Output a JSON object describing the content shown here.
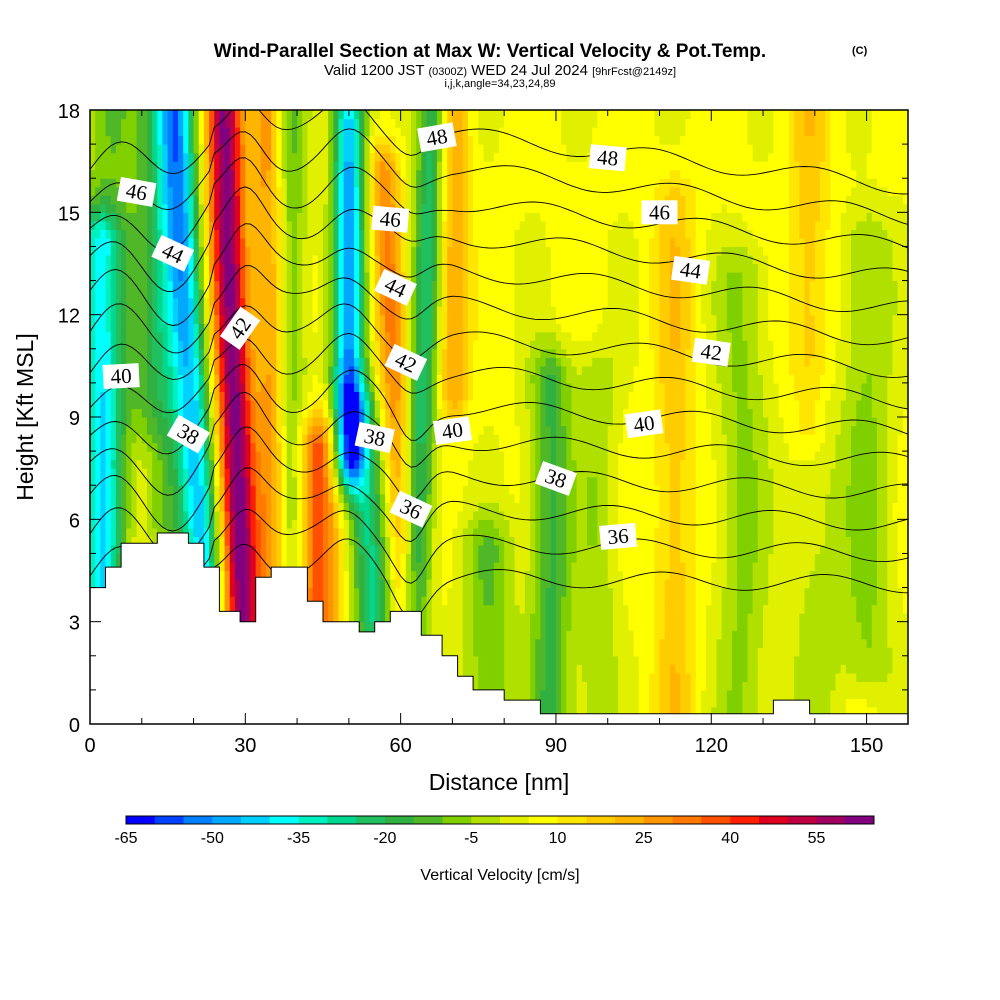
{
  "title": {
    "main": "Wind-Parallel Section at Max W: Vertical Velocity & Pot.Temp.",
    "copyright": "(C)",
    "valid_a": "Valid 1200 JST ",
    "valid_b": "(0300Z)",
    "valid_c": " WED 24 Jul 2024 ",
    "valid_d": "[9hrFcst@2149z]",
    "indices": "i,j,k,angle=34,23,24,89"
  },
  "chart_data": {
    "type": "heatmap",
    "xlabel": "Distance [nm]",
    "ylabel": "Height [Kft MSL]",
    "xlim": [
      0,
      158
    ],
    "ylim": [
      0,
      18
    ],
    "x_ticks": [
      "0",
      "30",
      "60",
      "90",
      "120",
      "150"
    ],
    "x_tick_values": [
      0,
      30,
      60,
      90,
      120,
      150
    ],
    "y_ticks": [
      "0",
      "3",
      "6",
      "9",
      "12",
      "15",
      "18"
    ],
    "y_tick_values": [
      0,
      3,
      6,
      9,
      12,
      15,
      18
    ],
    "grid": false,
    "terrain": [
      [
        0,
        4
      ],
      [
        3,
        4
      ],
      [
        3,
        4.6
      ],
      [
        6,
        4.6
      ],
      [
        6,
        5.3
      ],
      [
        13,
        5.3
      ],
      [
        13,
        5.6
      ],
      [
        19,
        5.6
      ],
      [
        19,
        5.3
      ],
      [
        22,
        5.3
      ],
      [
        22,
        4.6
      ],
      [
        25,
        4.6
      ],
      [
        25,
        3.3
      ],
      [
        29,
        3.3
      ],
      [
        29,
        3.0
      ],
      [
        32,
        3.0
      ],
      [
        32,
        4.3
      ],
      [
        35,
        4.3
      ],
      [
        35,
        4.6
      ],
      [
        42,
        4.6
      ],
      [
        42,
        3.6
      ],
      [
        45,
        3.6
      ],
      [
        45,
        3.0
      ],
      [
        52,
        3.0
      ],
      [
        52,
        2.7
      ],
      [
        55,
        2.7
      ],
      [
        55,
        3.0
      ],
      [
        58,
        3.0
      ],
      [
        58,
        3.3
      ],
      [
        64,
        3.3
      ],
      [
        64,
        2.6
      ],
      [
        68,
        2.6
      ],
      [
        68,
        2.0
      ],
      [
        71,
        2.0
      ],
      [
        71,
        1.4
      ],
      [
        74,
        1.4
      ],
      [
        74,
        1.0
      ],
      [
        80,
        1.0
      ],
      [
        80,
        0.7
      ],
      [
        87,
        0.7
      ],
      [
        87,
        0.3
      ],
      [
        132,
        0.3
      ],
      [
        132,
        0.7
      ],
      [
        139,
        0.7
      ],
      [
        139,
        0.3
      ],
      [
        158,
        0.3
      ]
    ],
    "vertical_velocity": {
      "background": 6,
      "features": [
        {
          "x": 2,
          "w": 4,
          "zlo": 3,
          "zhi": 14,
          "v": -32
        },
        {
          "x": 4,
          "w": 6,
          "zlo": 0,
          "zhi": 18,
          "v": -12
        },
        {
          "x": 14,
          "w": 5,
          "zlo": 6,
          "zhi": 18,
          "v": -22
        },
        {
          "x": 10,
          "w": 5,
          "zlo": 4,
          "zhi": 7.5,
          "v": 14
        },
        {
          "x": 20,
          "w": 3.5,
          "zlo": 4,
          "zhi": 18,
          "v": -42,
          "tilt": -0.4
        },
        {
          "x": 28,
          "w": 3.5,
          "zlo": 3,
          "zhi": 18,
          "v": 58,
          "tilt": -0.25
        },
        {
          "x": 35,
          "w": 3,
          "zlo": 3,
          "zhi": 18,
          "v": 22,
          "tilt": -0.1
        },
        {
          "x": 39,
          "w": 3,
          "zlo": 4,
          "zhi": 18,
          "v": -14
        },
        {
          "x": 44,
          "w": 4,
          "zlo": 3,
          "zhi": 8,
          "v": 35
        },
        {
          "x": 50,
          "w": 3,
          "zlo": 8,
          "zhi": 17.5,
          "v": -52
        },
        {
          "x": 52,
          "w": 4,
          "zlo": 3,
          "zhi": 9,
          "v": -30,
          "tilt": -0.5
        },
        {
          "x": 59,
          "w": 3,
          "zlo": 3,
          "zhi": 16,
          "v": 25,
          "tilt": -0.3
        },
        {
          "x": 64,
          "w": 3,
          "zlo": 3,
          "zhi": 18,
          "v": -28,
          "tilt": 0.25
        },
        {
          "x": 70,
          "w": 3,
          "zlo": 10,
          "zhi": 18,
          "v": 22
        },
        {
          "x": 77,
          "w": 5,
          "zlo": 0,
          "zhi": 5,
          "v": -14
        },
        {
          "x": 89,
          "w": 4,
          "zlo": 0,
          "zhi": 10,
          "v": -20
        },
        {
          "x": 98,
          "w": 4,
          "zlo": 0,
          "zhi": 10,
          "v": -8
        },
        {
          "x": 113,
          "w": 4,
          "zlo": 0,
          "zhi": 15,
          "v": 14
        },
        {
          "x": 126,
          "w": 5,
          "zlo": 0,
          "zhi": 13,
          "v": -10
        },
        {
          "x": 140,
          "w": 5,
          "zlo": 0,
          "zhi": 9,
          "v": -6
        },
        {
          "x": 150,
          "w": 5,
          "zlo": 2,
          "zhi": 14,
          "v": -10
        },
        {
          "x": 139,
          "w": 4,
          "zlo": 9,
          "zhi": 18,
          "v": 14
        }
      ]
    },
    "theta_contours": [
      36,
      37,
      38,
      39,
      40,
      41,
      42,
      43,
      44,
      45,
      46,
      47,
      48,
      49
    ],
    "theta_labels": [
      {
        "x": 9,
        "z": 15.6,
        "text": "46",
        "rot": 10
      },
      {
        "x": 16,
        "z": 13.8,
        "text": "44",
        "rot": 25
      },
      {
        "x": 6,
        "z": 10.2,
        "text": "40",
        "rot": -3
      },
      {
        "x": 19,
        "z": 8.5,
        "text": "38",
        "rot": 30
      },
      {
        "x": 29,
        "z": 11.6,
        "text": "42",
        "rot": -55
      },
      {
        "x": 67,
        "z": 17.2,
        "text": "48",
        "rot": -10
      },
      {
        "x": 58,
        "z": 14.8,
        "text": "46",
        "rot": 5
      },
      {
        "x": 59,
        "z": 12.8,
        "text": "44",
        "rot": 25
      },
      {
        "x": 61,
        "z": 10.6,
        "text": "42",
        "rot": 25
      },
      {
        "x": 55,
        "z": 8.4,
        "text": "38",
        "rot": 12
      },
      {
        "x": 62,
        "z": 6.3,
        "text": "36",
        "rot": 25
      },
      {
        "x": 70,
        "z": 8.6,
        "text": "40",
        "rot": -8
      },
      {
        "x": 100,
        "z": 16.6,
        "text": "48",
        "rot": 5
      },
      {
        "x": 110,
        "z": 15.0,
        "text": "46",
        "rot": 0
      },
      {
        "x": 116,
        "z": 13.3,
        "text": "44",
        "rot": 8
      },
      {
        "x": 120,
        "z": 10.9,
        "text": "42",
        "rot": 8
      },
      {
        "x": 107,
        "z": 8.8,
        "text": "40",
        "rot": -8
      },
      {
        "x": 90,
        "z": 7.2,
        "text": "38",
        "rot": 20
      },
      {
        "x": 102,
        "z": 5.5,
        "text": "36",
        "rot": -5
      }
    ]
  },
  "colorbar": {
    "label": "Vertical Velocity [cm/s]",
    "ticks": [
      "-65",
      "-50",
      "-35",
      "-20",
      "-5",
      "10",
      "25",
      "40",
      "55"
    ],
    "tick_values": [
      -65,
      -50,
      -35,
      -20,
      -5,
      10,
      25,
      40,
      55
    ],
    "bins": [
      -65,
      -60,
      -55,
      -50,
      -45,
      -40,
      -35,
      -30,
      -25,
      -20,
      -15,
      -10,
      -5,
      0,
      5,
      10,
      15,
      20,
      25,
      30,
      35,
      40,
      45,
      50,
      55,
      60,
      65
    ],
    "colors": [
      "#0000ff",
      "#0040ff",
      "#0080ff",
      "#00a8ff",
      "#00d0ff",
      "#00ffff",
      "#00f0c0",
      "#00d890",
      "#20c060",
      "#30b040",
      "#50b828",
      "#80d000",
      "#b0e000",
      "#e0f000",
      "#ffff00",
      "#ffe600",
      "#ffcc00",
      "#ffb400",
      "#ff9600",
      "#ff7800",
      "#ff5000",
      "#ff1e00",
      "#e00020",
      "#c00040",
      "#a00060",
      "#800080"
    ]
  }
}
